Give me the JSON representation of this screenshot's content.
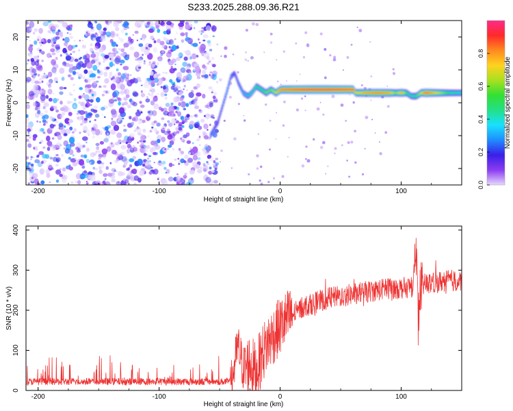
{
  "title": "S233.2025.288.09.36.R21",
  "chart_data": [
    {
      "type": "heatmap",
      "panel": "spectrogram",
      "xlabel": "Height of straight line (km)",
      "ylabel": "Frequency (Hz)",
      "xlim": [
        -210,
        150
      ],
      "ylim": [
        -25,
        25
      ],
      "xticks": [
        "-200",
        "-100",
        "0",
        "100"
      ],
      "yticks": [
        "-20",
        "-10",
        "0",
        "10",
        "20"
      ],
      "noise_region_x": [
        -210,
        -52
      ],
      "colorbar": {
        "label": "Normalized spectral amplitude",
        "range": [
          0,
          1
        ],
        "ticks": [
          "0.0",
          "0.2",
          "0.4",
          "0.6",
          "0.8"
        ],
        "colors": [
          "#e6d9ff",
          "#8b3cf0",
          "#3a1fe8",
          "#1f8cff",
          "#19e0ff",
          "#22e088",
          "#33e033",
          "#a8e020",
          "#ffd21f",
          "#ff8a1f",
          "#ff2a2a",
          "#ff2a8a"
        ]
      },
      "ridge": {
        "x": [
          -58,
          -52,
          -48,
          -44,
          -41,
          -38,
          -35,
          -31,
          -27,
          -24,
          -20,
          -16,
          -12,
          -8,
          -4,
          0,
          10,
          20,
          40,
          60,
          62,
          70,
          80,
          90,
          95,
          100,
          104,
          108,
          112,
          116,
          120,
          130,
          140,
          150
        ],
        "freq": [
          -10,
          -6,
          -1,
          4,
          8,
          9,
          6,
          3,
          2,
          3,
          5,
          4,
          3,
          4,
          3,
          4,
          4,
          4,
          4,
          4,
          3,
          3,
          3,
          3,
          3,
          3,
          3,
          2,
          2,
          3,
          3,
          3,
          3,
          3
        ],
        "amplitude": [
          0.3,
          0.25,
          0.3,
          0.35,
          0.3,
          0.25,
          0.3,
          0.35,
          0.4,
          0.45,
          0.5,
          0.5,
          0.6,
          0.6,
          0.7,
          0.85,
          0.9,
          0.95,
          0.95,
          0.9,
          0.7,
          0.8,
          0.85,
          0.8,
          0.6,
          0.8,
          0.55,
          0.45,
          0.55,
          0.7,
          0.9,
          0.7,
          0.5,
          0.45
        ]
      }
    },
    {
      "type": "line",
      "panel": "snr",
      "xlabel": "Height of straight line (km)",
      "ylabel": "SNR (10 * v/v)",
      "xlim": [
        -210,
        150
      ],
      "ylim": [
        0,
        410
      ],
      "xticks": [
        "-200",
        "-100",
        "0",
        "100"
      ],
      "yticks": [
        "0",
        "100",
        "200",
        "300",
        "400"
      ],
      "color": "#ee3333",
      "series": [
        {
          "name": "SNR",
          "x": [
            -210,
            -150,
            -100,
            -50,
            -40,
            -35,
            -30,
            -25,
            -20,
            -15,
            -10,
            -5,
            0,
            5,
            10,
            20,
            30,
            40,
            50,
            60,
            70,
            80,
            90,
            100,
            110,
            112,
            114,
            116,
            120,
            130,
            140,
            150
          ],
          "values": [
            22,
            22,
            22,
            22,
            22,
            110,
            50,
            70,
            45,
            90,
            120,
            140,
            160,
            175,
            190,
            210,
            220,
            230,
            235,
            240,
            245,
            250,
            255,
            255,
            260,
            400,
            170,
            260,
            265,
            270,
            275,
            270
          ]
        }
      ]
    }
  ]
}
